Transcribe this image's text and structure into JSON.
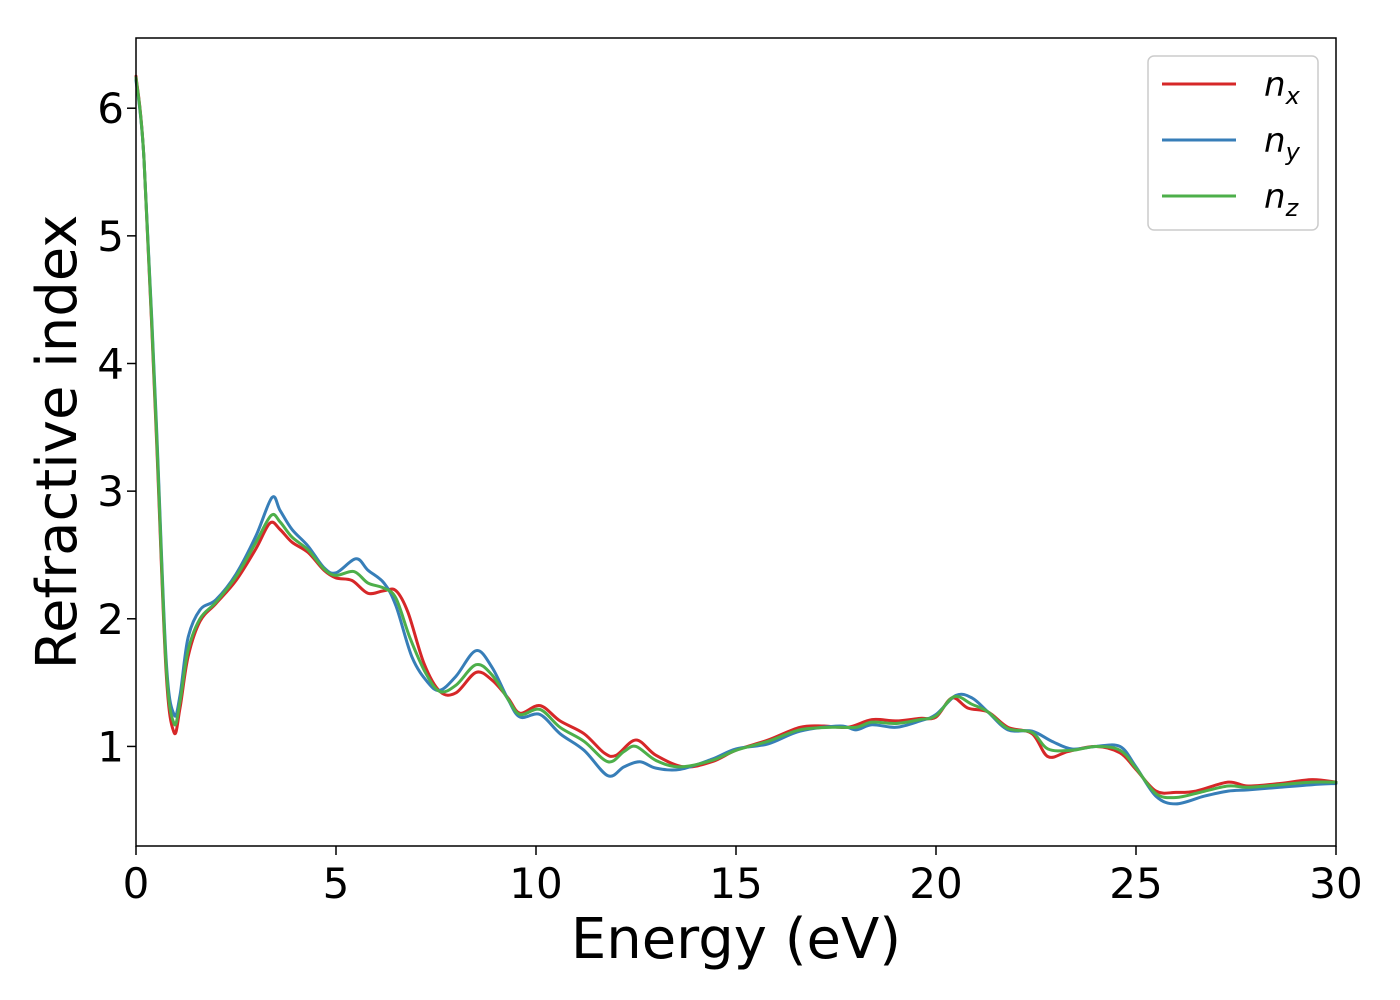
{
  "chart_data": {
    "type": "line",
    "title": "",
    "xlabel": "Energy (eV)",
    "ylabel": "Refractive index",
    "xlim": [
      0,
      30
    ],
    "ylim": [
      0.22,
      6.55
    ],
    "xticks": [
      0,
      5,
      10,
      15,
      20,
      25,
      30
    ],
    "yticks": [
      1,
      2,
      3,
      4,
      5,
      6
    ],
    "grid": false,
    "legend_position": "top-right",
    "series": [
      {
        "name": "n",
        "subscript": "x",
        "color": "#d62728",
        "points": [
          [
            0,
            6.25
          ],
          [
            0.2,
            5.6
          ],
          [
            0.5,
            3.5
          ],
          [
            0.75,
            1.6
          ],
          [
            0.95,
            1.11
          ],
          [
            1.1,
            1.3
          ],
          [
            1.3,
            1.7
          ],
          [
            1.6,
            1.98
          ],
          [
            2.0,
            2.12
          ],
          [
            2.5,
            2.3
          ],
          [
            3.0,
            2.55
          ],
          [
            3.35,
            2.75
          ],
          [
            3.6,
            2.7
          ],
          [
            3.9,
            2.6
          ],
          [
            4.3,
            2.52
          ],
          [
            4.7,
            2.38
          ],
          [
            5.0,
            2.32
          ],
          [
            5.4,
            2.3
          ],
          [
            5.8,
            2.2
          ],
          [
            6.2,
            2.22
          ],
          [
            6.5,
            2.22
          ],
          [
            6.8,
            2.05
          ],
          [
            7.2,
            1.65
          ],
          [
            7.6,
            1.43
          ],
          [
            8.0,
            1.42
          ],
          [
            8.5,
            1.58
          ],
          [
            8.9,
            1.52
          ],
          [
            9.3,
            1.38
          ],
          [
            9.6,
            1.26
          ],
          [
            10.1,
            1.32
          ],
          [
            10.6,
            1.2
          ],
          [
            11.2,
            1.1
          ],
          [
            11.7,
            0.95
          ],
          [
            12.0,
            0.93
          ],
          [
            12.5,
            1.05
          ],
          [
            13.0,
            0.93
          ],
          [
            13.7,
            0.84
          ],
          [
            14.4,
            0.88
          ],
          [
            15.0,
            0.97
          ],
          [
            15.8,
            1.05
          ],
          [
            16.6,
            1.15
          ],
          [
            17.2,
            1.16
          ],
          [
            17.8,
            1.15
          ],
          [
            18.4,
            1.21
          ],
          [
            19.0,
            1.2
          ],
          [
            19.6,
            1.22
          ],
          [
            20.0,
            1.23
          ],
          [
            20.4,
            1.38
          ],
          [
            20.8,
            1.3
          ],
          [
            21.3,
            1.27
          ],
          [
            21.8,
            1.15
          ],
          [
            22.4,
            1.1
          ],
          [
            22.8,
            0.92
          ],
          [
            23.3,
            0.96
          ],
          [
            24.0,
            1.0
          ],
          [
            24.6,
            0.95
          ],
          [
            25.0,
            0.82
          ],
          [
            25.5,
            0.65
          ],
          [
            26.0,
            0.64
          ],
          [
            26.5,
            0.65
          ],
          [
            27.3,
            0.72
          ],
          [
            27.8,
            0.69
          ],
          [
            28.6,
            0.71
          ],
          [
            29.4,
            0.74
          ],
          [
            30.0,
            0.72
          ]
        ]
      },
      {
        "name": "n",
        "subscript": "y",
        "color": "#377eb8",
        "points": [
          [
            0,
            6.22
          ],
          [
            0.2,
            5.6
          ],
          [
            0.5,
            3.6
          ],
          [
            0.75,
            1.7
          ],
          [
            0.95,
            1.25
          ],
          [
            1.1,
            1.4
          ],
          [
            1.3,
            1.85
          ],
          [
            1.6,
            2.07
          ],
          [
            2.0,
            2.15
          ],
          [
            2.5,
            2.35
          ],
          [
            3.0,
            2.65
          ],
          [
            3.4,
            2.95
          ],
          [
            3.6,
            2.85
          ],
          [
            3.9,
            2.7
          ],
          [
            4.3,
            2.57
          ],
          [
            4.7,
            2.4
          ],
          [
            5.0,
            2.36
          ],
          [
            5.5,
            2.47
          ],
          [
            5.8,
            2.38
          ],
          [
            6.2,
            2.28
          ],
          [
            6.5,
            2.1
          ],
          [
            6.9,
            1.7
          ],
          [
            7.3,
            1.5
          ],
          [
            7.6,
            1.44
          ],
          [
            8.0,
            1.55
          ],
          [
            8.5,
            1.75
          ],
          [
            8.9,
            1.62
          ],
          [
            9.3,
            1.37
          ],
          [
            9.6,
            1.23
          ],
          [
            10.1,
            1.25
          ],
          [
            10.6,
            1.1
          ],
          [
            11.2,
            0.97
          ],
          [
            11.8,
            0.77
          ],
          [
            12.2,
            0.84
          ],
          [
            12.6,
            0.88
          ],
          [
            13.0,
            0.83
          ],
          [
            13.6,
            0.82
          ],
          [
            14.4,
            0.9
          ],
          [
            15.0,
            0.98
          ],
          [
            15.8,
            1.02
          ],
          [
            16.6,
            1.12
          ],
          [
            17.6,
            1.16
          ],
          [
            18.0,
            1.13
          ],
          [
            18.4,
            1.17
          ],
          [
            19.0,
            1.15
          ],
          [
            19.6,
            1.2
          ],
          [
            20.0,
            1.25
          ],
          [
            20.5,
            1.4
          ],
          [
            20.9,
            1.38
          ],
          [
            21.3,
            1.27
          ],
          [
            21.8,
            1.13
          ],
          [
            22.4,
            1.12
          ],
          [
            22.9,
            1.04
          ],
          [
            23.4,
            0.98
          ],
          [
            24.0,
            1.0
          ],
          [
            24.6,
            1.0
          ],
          [
            25.0,
            0.84
          ],
          [
            25.5,
            0.61
          ],
          [
            26.0,
            0.55
          ],
          [
            26.7,
            0.61
          ],
          [
            27.3,
            0.65
          ],
          [
            27.8,
            0.66
          ],
          [
            28.6,
            0.68
          ],
          [
            29.4,
            0.7
          ],
          [
            30.0,
            0.71
          ]
        ]
      },
      {
        "name": "n",
        "subscript": "z",
        "color": "#4daf4a",
        "points": [
          [
            0,
            6.24
          ],
          [
            0.2,
            5.6
          ],
          [
            0.5,
            3.55
          ],
          [
            0.75,
            1.65
          ],
          [
            0.95,
            1.18
          ],
          [
            1.1,
            1.35
          ],
          [
            1.3,
            1.75
          ],
          [
            1.6,
            2.0
          ],
          [
            2.0,
            2.13
          ],
          [
            2.5,
            2.33
          ],
          [
            3.0,
            2.6
          ],
          [
            3.38,
            2.81
          ],
          [
            3.6,
            2.76
          ],
          [
            3.9,
            2.64
          ],
          [
            4.3,
            2.54
          ],
          [
            4.7,
            2.39
          ],
          [
            5.0,
            2.34
          ],
          [
            5.45,
            2.37
          ],
          [
            5.8,
            2.28
          ],
          [
            6.2,
            2.24
          ],
          [
            6.5,
            2.16
          ],
          [
            6.85,
            1.85
          ],
          [
            7.25,
            1.57
          ],
          [
            7.6,
            1.43
          ],
          [
            8.0,
            1.48
          ],
          [
            8.5,
            1.64
          ],
          [
            8.9,
            1.56
          ],
          [
            9.3,
            1.37
          ],
          [
            9.6,
            1.25
          ],
          [
            10.1,
            1.29
          ],
          [
            10.6,
            1.15
          ],
          [
            11.2,
            1.04
          ],
          [
            11.8,
            0.88
          ],
          [
            12.2,
            0.96
          ],
          [
            12.5,
            1.0
          ],
          [
            13.0,
            0.89
          ],
          [
            13.6,
            0.84
          ],
          [
            14.4,
            0.89
          ],
          [
            15.0,
            0.97
          ],
          [
            15.8,
            1.04
          ],
          [
            16.6,
            1.13
          ],
          [
            17.4,
            1.15
          ],
          [
            18.0,
            1.15
          ],
          [
            18.4,
            1.19
          ],
          [
            19.0,
            1.18
          ],
          [
            19.6,
            1.21
          ],
          [
            20.0,
            1.24
          ],
          [
            20.45,
            1.39
          ],
          [
            20.9,
            1.33
          ],
          [
            21.3,
            1.27
          ],
          [
            21.8,
            1.14
          ],
          [
            22.4,
            1.11
          ],
          [
            22.8,
            0.98
          ],
          [
            23.4,
            0.97
          ],
          [
            24.0,
            1.0
          ],
          [
            24.6,
            0.97
          ],
          [
            25.0,
            0.83
          ],
          [
            25.5,
            0.63
          ],
          [
            26.0,
            0.6
          ],
          [
            26.6,
            0.64
          ],
          [
            27.3,
            0.69
          ],
          [
            27.8,
            0.68
          ],
          [
            28.6,
            0.7
          ],
          [
            29.4,
            0.72
          ],
          [
            30.0,
            0.72
          ]
        ]
      }
    ]
  }
}
